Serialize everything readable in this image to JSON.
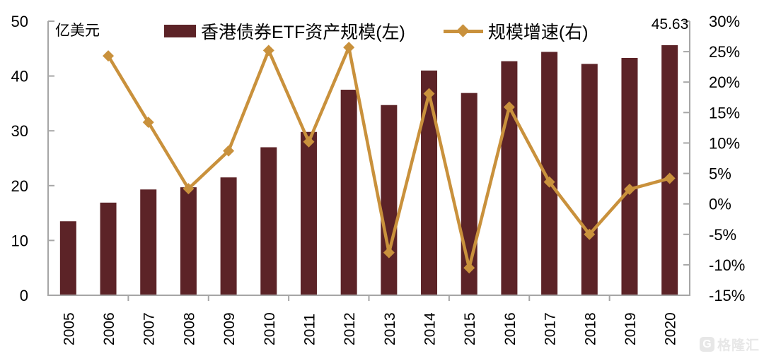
{
  "chart_data": {
    "type": "bar",
    "subtype": "bar+line dual axis",
    "categories": [
      "2005",
      "2006",
      "2007",
      "2008",
      "2009",
      "2010",
      "2011",
      "2012",
      "2013",
      "2014",
      "2015",
      "2016",
      "2017",
      "2018",
      "2019",
      "2020"
    ],
    "series": [
      {
        "name": "香港债券ETF资产规模(左)",
        "type": "bar",
        "axis": "left",
        "color": "#5C2327",
        "values": [
          13.5,
          16.9,
          19.3,
          19.7,
          21.5,
          27.0,
          29.8,
          37.5,
          34.7,
          41.0,
          36.9,
          42.7,
          44.4,
          42.2,
          43.3,
          45.63
        ]
      },
      {
        "name": "规模增速(右)",
        "type": "line",
        "axis": "right",
        "color": "#C9913C",
        "marker": "diamond",
        "values": [
          null,
          24.3,
          13.4,
          2.5,
          8.7,
          25.2,
          10.2,
          25.7,
          -8.0,
          18.1,
          -10.5,
          15.9,
          3.6,
          -5.0,
          2.4,
          4.2
        ]
      }
    ],
    "left_axis": {
      "title": "亿美元",
      "min": 0,
      "max": 50,
      "step": 10,
      "ticks": [
        "0",
        "10",
        "20",
        "30",
        "40",
        "50"
      ]
    },
    "right_axis": {
      "min": -15,
      "max": 30,
      "step": 5,
      "ticks": [
        "-15%",
        "-10%",
        "-5%",
        "0%",
        "5%",
        "10%",
        "15%",
        "20%",
        "25%",
        "30%"
      ]
    },
    "annotation": {
      "text": "45.63",
      "category": "2020"
    },
    "legend_position": "top-center",
    "grid": false,
    "axis_color": "#A6A6A6",
    "text_color": "#000000"
  },
  "watermark": {
    "logo_letter": "G",
    "text": "格隆汇",
    "color": "#E7E7E7"
  }
}
